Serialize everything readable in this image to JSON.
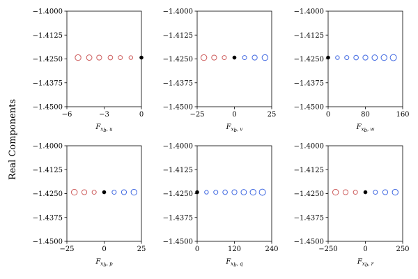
{
  "figure": {
    "ylabel": "Real Components"
  },
  "colors": {
    "negative": "#cd5c5c",
    "positive": "#4169e1",
    "baseline": "#000000"
  },
  "chart_data": [
    {
      "type": "scatter",
      "xlabel_main": "F",
      "xlabel_sub": "x",
      "xlabel_sub2": "b",
      "xlabel_suffix": ", u",
      "xlim": [
        -6,
        0
      ],
      "xticks": [
        -6,
        -3,
        0
      ],
      "xtick_labels": [
        "−6",
        "−3",
        "0"
      ],
      "ylim": [
        -1.45,
        -1.4
      ],
      "yticks": [
        -1.4,
        -1.4125,
        -1.425,
        -1.4375,
        -1.45
      ],
      "ytick_labels": [
        "−1.4000",
        "−1.4125",
        "−1.4250",
        "−1.4375",
        "−1.4500"
      ],
      "points": [
        {
          "x": -5.1,
          "y": -1.4243,
          "kind": "negative",
          "r": 4.2
        },
        {
          "x": -4.2,
          "y": -1.4243,
          "kind": "negative",
          "r": 3.9
        },
        {
          "x": -3.4,
          "y": -1.4243,
          "kind": "negative",
          "r": 3.6
        },
        {
          "x": -2.5,
          "y": -1.4243,
          "kind": "negative",
          "r": 3.3
        },
        {
          "x": -1.7,
          "y": -1.4243,
          "kind": "negative",
          "r": 3.0
        },
        {
          "x": -0.85,
          "y": -1.4243,
          "kind": "negative",
          "r": 2.7
        },
        {
          "x": 0,
          "y": -1.4243,
          "kind": "baseline",
          "r": 2.8
        }
      ]
    },
    {
      "type": "scatter",
      "xlabel_main": "F",
      "xlabel_sub": "x",
      "xlabel_sub2": "b",
      "xlabel_suffix": ", v",
      "xlim": [
        -25,
        25
      ],
      "xticks": [
        -25,
        0,
        25
      ],
      "xtick_labels": [
        "−25",
        "0",
        "25"
      ],
      "ylim": [
        -1.45,
        -1.4
      ],
      "yticks": [
        -1.4,
        -1.4125,
        -1.425,
        -1.4375,
        -1.45
      ],
      "ytick_labels": [
        "−1.4000",
        "−1.4125",
        "−1.4250",
        "−1.4375",
        "−1.4500"
      ],
      "points": [
        {
          "x": -20.5,
          "y": -1.4243,
          "kind": "negative",
          "r": 4.2
        },
        {
          "x": -13.6,
          "y": -1.4243,
          "kind": "negative",
          "r": 3.6
        },
        {
          "x": -6.8,
          "y": -1.4243,
          "kind": "negative",
          "r": 3.0
        },
        {
          "x": 0,
          "y": -1.4243,
          "kind": "baseline",
          "r": 2.8
        },
        {
          "x": 6.8,
          "y": -1.4243,
          "kind": "positive",
          "r": 3.0
        },
        {
          "x": 13.6,
          "y": -1.4243,
          "kind": "positive",
          "r": 3.6
        },
        {
          "x": 20.5,
          "y": -1.4243,
          "kind": "positive",
          "r": 4.2
        }
      ]
    },
    {
      "type": "scatter",
      "xlabel_main": "F",
      "xlabel_sub": "x",
      "xlabel_sub2": "b",
      "xlabel_suffix": ", w",
      "xlim": [
        0,
        160
      ],
      "xticks": [
        0,
        80,
        160
      ],
      "xtick_labels": [
        "0",
        "80",
        "160"
      ],
      "ylim": [
        -1.45,
        -1.4
      ],
      "yticks": [
        -1.4,
        -1.4125,
        -1.425,
        -1.4375,
        -1.45
      ],
      "ytick_labels": [
        "−1.4000",
        "−1.4125",
        "−1.4250",
        "−1.4375",
        "−1.4500"
      ],
      "points": [
        {
          "x": 0,
          "y": -1.4243,
          "kind": "baseline",
          "r": 2.8
        },
        {
          "x": 20,
          "y": -1.4243,
          "kind": "positive",
          "r": 2.7
        },
        {
          "x": 40,
          "y": -1.4243,
          "kind": "positive",
          "r": 3.0
        },
        {
          "x": 60,
          "y": -1.4243,
          "kind": "positive",
          "r": 3.3
        },
        {
          "x": 80,
          "y": -1.4243,
          "kind": "positive",
          "r": 3.6
        },
        {
          "x": 100,
          "y": -1.4243,
          "kind": "positive",
          "r": 3.9
        },
        {
          "x": 120,
          "y": -1.4243,
          "kind": "positive",
          "r": 4.2
        },
        {
          "x": 140,
          "y": -1.4243,
          "kind": "positive",
          "r": 4.5
        }
      ]
    },
    {
      "type": "scatter",
      "xlabel_main": "F",
      "xlabel_sub": "x",
      "xlabel_sub2": "b",
      "xlabel_suffix": ", p",
      "xlim": [
        -25,
        25
      ],
      "xticks": [
        -25,
        0,
        25
      ],
      "xtick_labels": [
        "−25",
        "0",
        "25"
      ],
      "ylim": [
        -1.45,
        -1.4
      ],
      "yticks": [
        -1.4,
        -1.4125,
        -1.425,
        -1.4375,
        -1.45
      ],
      "ytick_labels": [
        "−1.4000",
        "−1.4125",
        "−1.4250",
        "−1.4375",
        "−1.4500"
      ],
      "points": [
        {
          "x": -20,
          "y": -1.4243,
          "kind": "negative",
          "r": 4.2
        },
        {
          "x": -13.3,
          "y": -1.4243,
          "kind": "negative",
          "r": 3.6
        },
        {
          "x": -6.7,
          "y": -1.4243,
          "kind": "negative",
          "r": 3.0
        },
        {
          "x": 0,
          "y": -1.4243,
          "kind": "baseline",
          "r": 2.8
        },
        {
          "x": 6.7,
          "y": -1.4243,
          "kind": "positive",
          "r": 3.0
        },
        {
          "x": 13.3,
          "y": -1.4243,
          "kind": "positive",
          "r": 3.6
        },
        {
          "x": 20,
          "y": -1.4243,
          "kind": "positive",
          "r": 4.2
        }
      ]
    },
    {
      "type": "scatter",
      "xlabel_main": "F",
      "xlabel_sub": "x",
      "xlabel_sub2": "b",
      "xlabel_suffix": ", q",
      "xlim": [
        0,
        240
      ],
      "xticks": [
        0,
        120,
        240
      ],
      "xtick_labels": [
        "0",
        "120",
        "240"
      ],
      "ylim": [
        -1.45,
        -1.4
      ],
      "yticks": [
        -1.4,
        -1.4125,
        -1.425,
        -1.4375,
        -1.45
      ],
      "ytick_labels": [
        "−1.4000",
        "−1.4125",
        "−1.4250",
        "−1.4375",
        "−1.4500"
      ],
      "points": [
        {
          "x": 0,
          "y": -1.4243,
          "kind": "baseline",
          "r": 2.8
        },
        {
          "x": 30,
          "y": -1.4243,
          "kind": "positive",
          "r": 2.7
        },
        {
          "x": 60,
          "y": -1.4243,
          "kind": "positive",
          "r": 3.0
        },
        {
          "x": 90,
          "y": -1.4243,
          "kind": "positive",
          "r": 3.3
        },
        {
          "x": 120,
          "y": -1.4243,
          "kind": "positive",
          "r": 3.6
        },
        {
          "x": 150,
          "y": -1.4243,
          "kind": "positive",
          "r": 3.9
        },
        {
          "x": 180,
          "y": -1.4243,
          "kind": "positive",
          "r": 4.2
        },
        {
          "x": 210,
          "y": -1.4243,
          "kind": "positive",
          "r": 4.5
        }
      ]
    },
    {
      "type": "scatter",
      "xlabel_main": "F",
      "xlabel_sub": "x",
      "xlabel_sub2": "b",
      "xlabel_suffix": ", r",
      "xlim": [
        -250,
        250
      ],
      "xticks": [
        -250,
        0,
        250
      ],
      "xtick_labels": [
        "−250",
        "0",
        "250"
      ],
      "ylim": [
        -1.45,
        -1.4
      ],
      "yticks": [
        -1.4,
        -1.4125,
        -1.425,
        -1.4375,
        -1.45
      ],
      "ytick_labels": [
        "−1.4000",
        "−1.4125",
        "−1.4250",
        "−1.4375",
        "−1.4500"
      ],
      "points": [
        {
          "x": -200,
          "y": -1.4243,
          "kind": "negative",
          "r": 4.2
        },
        {
          "x": -133,
          "y": -1.4243,
          "kind": "negative",
          "r": 3.6
        },
        {
          "x": -67,
          "y": -1.4243,
          "kind": "negative",
          "r": 3.0
        },
        {
          "x": 0,
          "y": -1.4243,
          "kind": "baseline",
          "r": 2.8
        },
        {
          "x": 67,
          "y": -1.4243,
          "kind": "positive",
          "r": 3.0
        },
        {
          "x": 133,
          "y": -1.4243,
          "kind": "positive",
          "r": 3.6
        },
        {
          "x": 200,
          "y": -1.4243,
          "kind": "positive",
          "r": 4.2
        }
      ]
    }
  ]
}
